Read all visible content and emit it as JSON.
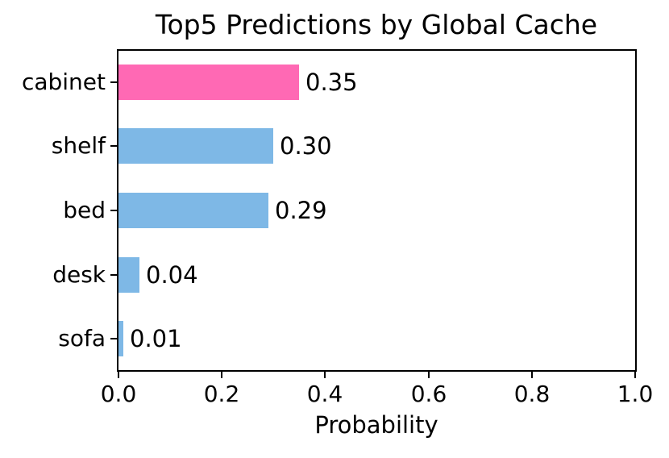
{
  "chart_data": {
    "type": "bar",
    "orientation": "horizontal",
    "title": "Top5 Predictions by Global Cache",
    "xlabel": "Probability",
    "ylabel": "",
    "categories": [
      "cabinet",
      "shelf",
      "bed",
      "desk",
      "sofa"
    ],
    "values": [
      0.35,
      0.3,
      0.29,
      0.04,
      0.01
    ],
    "value_labels": [
      "0.35",
      "0.30",
      "0.29",
      "0.04",
      "0.01"
    ],
    "bar_colors": [
      "#FF69B4",
      "#7EB8E6",
      "#7EB8E6",
      "#7EB8E6",
      "#7EB8E6"
    ],
    "highlight_color": "#FF69B4",
    "default_bar_color": "#7EB8E6",
    "axis_color": "#000000",
    "text_color": "#000000",
    "background_color": "#FFFFFF",
    "xlim": [
      0.0,
      1.0
    ],
    "x_ticks": [
      {
        "value": 0.0,
        "label": "0.0"
      },
      {
        "value": 0.2,
        "label": "0.2"
      },
      {
        "value": 0.4,
        "label": "0.4"
      },
      {
        "value": 0.6,
        "label": "0.6"
      },
      {
        "value": 0.8,
        "label": "0.8"
      },
      {
        "value": 1.0,
        "label": "1.0"
      }
    ],
    "grid": false,
    "legend": null
  }
}
